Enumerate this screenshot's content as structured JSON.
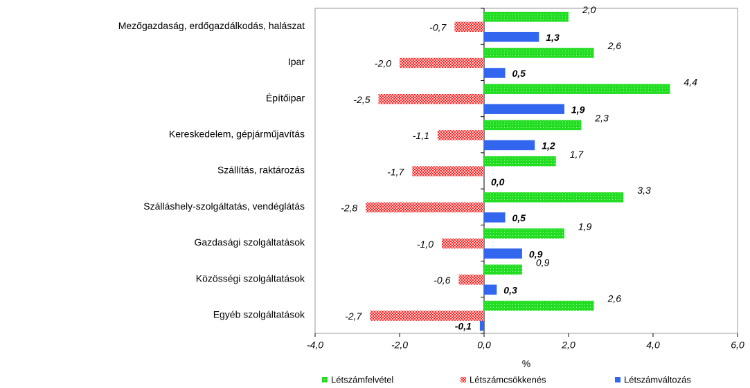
{
  "chart_data": {
    "type": "hbar",
    "categories": [
      "Mezőgazdaság, erdőgazdálkodás, halászat",
      "Ipar",
      "Építőipar",
      "Kereskedelem, gépjárműjavítás",
      "Szállítás, raktározás",
      "Szálláshely-szolgáltatás, vendéglátás",
      "Gazdasági szolgáltatások",
      "Közösségi szolgáltatások",
      "Egyéb szolgáltatások"
    ],
    "series": [
      {
        "name": "Létszámfelvétel",
        "color": "#22dd22",
        "values": [
          2.0,
          2.6,
          4.4,
          2.3,
          1.7,
          3.3,
          1.9,
          0.9,
          2.6
        ],
        "value_labels": [
          "2,0",
          "2,6",
          "4,4",
          "2,3",
          "1,7",
          "3,3",
          "1,9",
          "0,9",
          "2,6"
        ]
      },
      {
        "name": "Létszámcsökkenés",
        "color": "#ff2222",
        "values": [
          -0.7,
          -2.0,
          -2.5,
          -1.1,
          -1.7,
          -2.8,
          -1.0,
          -0.6,
          -2.7
        ],
        "value_labels": [
          "-0,7",
          "-2,0",
          "-2,5",
          "-1,1",
          "-1,7",
          "-2,8",
          "-1,0",
          "-0,6",
          "-2,7"
        ]
      },
      {
        "name": "Létszámváltozás",
        "color": "#3366ee",
        "values": [
          1.3,
          0.5,
          1.9,
          1.2,
          0.0,
          0.5,
          0.9,
          0.3,
          -0.1
        ],
        "value_labels": [
          "1,3",
          "0,5",
          "1,9",
          "1,2",
          "0,0",
          "0,5",
          "0,9",
          "0,3",
          "-0,1"
        ]
      }
    ],
    "xlabel": "%",
    "xlim": [
      -4,
      6
    ],
    "xticks": [
      {
        "value": -4,
        "label": "-4,0"
      },
      {
        "value": -2,
        "label": "-2,0"
      },
      {
        "value": 0,
        "label": "0,0"
      },
      {
        "value": 2,
        "label": "2,0"
      },
      {
        "value": 4,
        "label": "4,0"
      },
      {
        "value": 6,
        "label": "6,0"
      }
    ],
    "legend": "bottom"
  }
}
